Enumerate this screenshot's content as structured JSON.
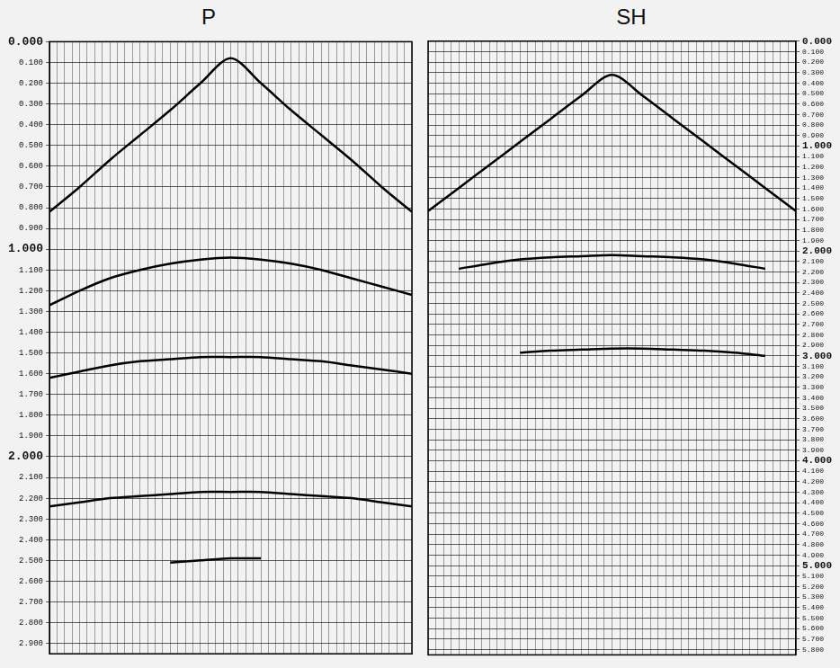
{
  "chart_data": [
    {
      "type": "line",
      "title": "P",
      "x": [
        0,
        4,
        8,
        12,
        16,
        20,
        24,
        28,
        32,
        36,
        40,
        44,
        48
      ],
      "series": [
        {
          "color": "#000000",
          "marker": "none",
          "line_style": "solid",
          "values": [
            0.82,
            0.7,
            0.57,
            0.45,
            0.33,
            0.2,
            0.08,
            0.2,
            0.33,
            0.45,
            0.57,
            0.7,
            0.82
          ]
        },
        {
          "color": "#000000",
          "marker": "none",
          "line_style": "solid",
          "values": [
            1.27,
            1.2,
            1.14,
            1.1,
            1.07,
            1.05,
            1.04,
            1.05,
            1.07,
            1.1,
            1.14,
            1.18,
            1.22
          ]
        },
        {
          "color": "#000000",
          "marker": "none",
          "line_style": "solid",
          "values": [
            1.62,
            1.59,
            1.56,
            1.54,
            1.53,
            1.52,
            1.52,
            1.52,
            1.53,
            1.54,
            1.56,
            1.58,
            1.6
          ]
        },
        {
          "color": "#000000",
          "marker": "none",
          "line_style": "solid",
          "values": [
            2.24,
            2.22,
            2.2,
            2.19,
            2.18,
            2.17,
            2.17,
            2.17,
            2.18,
            2.19,
            2.2,
            2.22,
            2.24
          ]
        },
        {
          "color": "#000000",
          "marker": "none",
          "line_style": "solid",
          "values": [
            null,
            null,
            null,
            null,
            2.51,
            2.5,
            2.49,
            2.49,
            null,
            null,
            null,
            null,
            null
          ]
        }
      ],
      "xlim": [
        0,
        48
      ],
      "xticks": [
        0,
        1,
        2,
        3,
        4,
        5,
        6,
        7,
        8,
        9,
        10,
        11,
        12,
        13,
        14,
        15,
        16,
        17,
        18,
        19,
        20,
        21,
        22,
        23,
        24,
        25,
        26,
        27,
        28,
        29,
        30,
        31,
        32,
        33,
        34,
        35,
        36,
        37,
        38,
        39,
        40,
        41,
        42,
        43,
        44,
        45,
        46,
        47,
        48
      ],
      "ylim": [
        0,
        2.95
      ],
      "yticks": [
        {
          "value": 0,
          "label": "0.000"
        },
        {
          "value": 0.1,
          "label": "0.100"
        },
        {
          "value": 0.2,
          "label": "0.200"
        },
        {
          "value": 0.3,
          "label": "0.300"
        },
        {
          "value": 0.4,
          "label": "0.400"
        },
        {
          "value": 0.5,
          "label": "0.500"
        },
        {
          "value": 0.6,
          "label": "0.600"
        },
        {
          "value": 0.7,
          "label": "0.700"
        },
        {
          "value": 0.8,
          "label": "0.800"
        },
        {
          "value": 0.9,
          "label": "0.900"
        },
        {
          "value": 1,
          "label": "1.000"
        },
        {
          "value": 1.1,
          "label": "1.100"
        },
        {
          "value": 1.2,
          "label": "1.200"
        },
        {
          "value": 1.3,
          "label": "1.300"
        },
        {
          "value": 1.4,
          "label": "1.400"
        },
        {
          "value": 1.5,
          "label": "1.500"
        },
        {
          "value": 1.6,
          "label": "1.600"
        },
        {
          "value": 1.7,
          "label": "1.700"
        },
        {
          "value": 1.8,
          "label": "1.800"
        },
        {
          "value": 1.9,
          "label": "1.900"
        },
        {
          "value": 2,
          "label": "2.000"
        },
        {
          "value": 2.1,
          "label": "2.100"
        },
        {
          "value": 2.2,
          "label": "2.200"
        },
        {
          "value": 2.3,
          "label": "2.300"
        },
        {
          "value": 2.4,
          "label": "2.400"
        },
        {
          "value": 2.5,
          "label": "2.500"
        },
        {
          "value": 2.6,
          "label": "2.600"
        },
        {
          "value": 2.7,
          "label": "2.700"
        },
        {
          "value": 2.8,
          "label": "2.800"
        },
        {
          "value": 2.9,
          "label": "2.900"
        }
      ],
      "grid": true,
      "tick_labels": "y"
    },
    {
      "type": "line",
      "title": "SH",
      "x": [
        0,
        4,
        8,
        12,
        16,
        20,
        24,
        28,
        32,
        36,
        40,
        44,
        48
      ],
      "series": [
        {
          "color": "#000000",
          "marker": "none",
          "line_style": "solid",
          "values": [
            1.62,
            1.4,
            1.18,
            0.96,
            0.74,
            0.52,
            0.32,
            0.52,
            0.74,
            0.96,
            1.18,
            1.4,
            1.62
          ]
        },
        {
          "color": "#000000",
          "marker": "none",
          "line_style": "solid",
          "values": [
            null,
            2.17,
            2.12,
            2.08,
            2.06,
            2.05,
            2.04,
            2.05,
            2.06,
            2.08,
            2.12,
            2.17,
            null
          ]
        },
        {
          "color": "#000000",
          "marker": "none",
          "line_style": "solid",
          "values": [
            null,
            null,
            null,
            2.97,
            2.95,
            2.94,
            2.93,
            2.93,
            2.94,
            2.95,
            2.97,
            3.0,
            null
          ]
        }
      ],
      "xlim": [
        0,
        48
      ],
      "xticks": [
        0,
        1,
        2,
        3,
        4,
        5,
        6,
        7,
        8,
        9,
        10,
        11,
        12,
        13,
        14,
        15,
        16,
        17,
        18,
        19,
        20,
        21,
        22,
        23,
        24,
        25,
        26,
        27,
        28,
        29,
        30,
        31,
        32,
        33,
        34,
        35,
        36,
        37,
        38,
        39,
        40,
        41,
        42,
        43,
        44,
        45,
        46,
        47,
        48
      ],
      "ylim": [
        0,
        5.85
      ],
      "yticks": [
        {
          "value": 0,
          "label": "0.000"
        },
        {
          "value": 0.1,
          "label": "0.100"
        },
        {
          "value": 0.2,
          "label": "0.200"
        },
        {
          "value": 0.3,
          "label": "0.300"
        },
        {
          "value": 0.4,
          "label": "0.400"
        },
        {
          "value": 0.5,
          "label": "0.500"
        },
        {
          "value": 0.6,
          "label": "0.600"
        },
        {
          "value": 0.7,
          "label": "0.700"
        },
        {
          "value": 0.8,
          "label": "0.800"
        },
        {
          "value": 0.9,
          "label": "0.900"
        },
        {
          "value": 1,
          "label": "1.000"
        },
        {
          "value": 1.1,
          "label": "1.100"
        },
        {
          "value": 1.2,
          "label": "1.200"
        },
        {
          "value": 1.3,
          "label": "1.300"
        },
        {
          "value": 1.4,
          "label": "1.400"
        },
        {
          "value": 1.5,
          "label": "1.500"
        },
        {
          "value": 1.6,
          "label": "1.600"
        },
        {
          "value": 1.7,
          "label": "1.700"
        },
        {
          "value": 1.8,
          "label": "1.800"
        },
        {
          "value": 1.9,
          "label": "1.900"
        },
        {
          "value": 2,
          "label": "2.000"
        },
        {
          "value": 2.1,
          "label": "2.100"
        },
        {
          "value": 2.2,
          "label": "2.200"
        },
        {
          "value": 2.3,
          "label": "2.300"
        },
        {
          "value": 2.4,
          "label": "2.400"
        },
        {
          "value": 2.5,
          "label": "2.500"
        },
        {
          "value": 2.6,
          "label": "2.600"
        },
        {
          "value": 2.7,
          "label": "2.700"
        },
        {
          "value": 2.8,
          "label": "2.800"
        },
        {
          "value": 2.9,
          "label": "2.900"
        },
        {
          "value": 3,
          "label": "3.000"
        },
        {
          "value": 3.1,
          "label": "3.100"
        },
        {
          "value": 3.2,
          "label": "3.200"
        },
        {
          "value": 3.3,
          "label": "3.300"
        },
        {
          "value": 3.4,
          "label": "3.400"
        },
        {
          "value": 3.5,
          "label": "3.500"
        },
        {
          "value": 3.6,
          "label": "3.600"
        },
        {
          "value": 3.7,
          "label": "3.700"
        },
        {
          "value": 3.8,
          "label": "3.800"
        },
        {
          "value": 3.9,
          "label": "3.900"
        },
        {
          "value": 4,
          "label": "4.000"
        },
        {
          "value": 4.1,
          "label": "4.100"
        },
        {
          "value": 4.2,
          "label": "4.200"
        },
        {
          "value": 4.3,
          "label": "4.300"
        },
        {
          "value": 4.4,
          "label": "4.400"
        },
        {
          "value": 4.5,
          "label": "4.500"
        },
        {
          "value": 4.6,
          "label": "4.600"
        },
        {
          "value": 4.7,
          "label": "4.700"
        },
        {
          "value": 4.8,
          "label": "4.800"
        },
        {
          "value": 4.9,
          "label": "4.900"
        },
        {
          "value": 5,
          "label": "5.000"
        },
        {
          "value": 5.1,
          "label": "5.100"
        },
        {
          "value": 5.2,
          "label": "5.200"
        },
        {
          "value": 5.3,
          "label": "5.300"
        },
        {
          "value": 5.4,
          "label": "5.400"
        },
        {
          "value": 5.5,
          "label": "5.500"
        },
        {
          "value": 5.6,
          "label": "5.600"
        },
        {
          "value": 5.7,
          "label": "5.700"
        },
        {
          "value": 5.8,
          "label": "5.800"
        }
      ],
      "grid": true,
      "tick_labels": "y"
    }
  ]
}
